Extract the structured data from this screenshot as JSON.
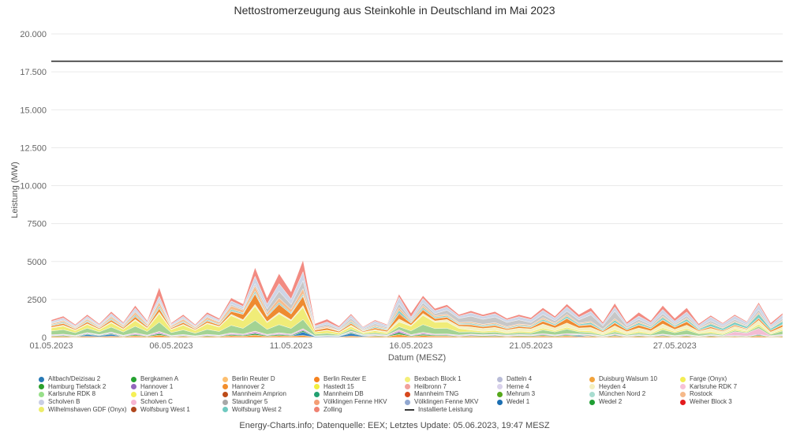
{
  "page": {
    "footer": "Energy-Charts.info; Datenquelle: EEX; Letztes Update: 05.06.2023, 19:47 MESZ"
  },
  "chart_data": {
    "type": "area",
    "stacked": true,
    "title": "Nettostromerzeugung aus Steinkohle in Deutschland im Mai 2023",
    "xlabel": "Datum (MESZ)",
    "ylabel": "Leistung (MW)",
    "ylim": [
      0,
      20000
    ],
    "grid": "horizontal",
    "legend_position": "bottom",
    "yticks": [
      {
        "value": 20000,
        "label": "20.000"
      },
      {
        "value": 17500,
        "label": "17.500"
      },
      {
        "value": 15000,
        "label": "15.000"
      },
      {
        "value": 12500,
        "label": "12.500"
      },
      {
        "value": 10000,
        "label": "10.000"
      },
      {
        "value": 7500,
        "label": "7500"
      },
      {
        "value": 5000,
        "label": "5000"
      },
      {
        "value": 2500,
        "label": "2500"
      },
      {
        "value": 0,
        "label": "0"
      }
    ],
    "xticks": [
      {
        "t_days": 0,
        "label": "01.05.2023"
      },
      {
        "t_days": 5,
        "label": "06.05.2023"
      },
      {
        "t_days": 10,
        "label": "11.05.2023"
      },
      {
        "t_days": 15,
        "label": "16.05.2023"
      },
      {
        "t_days": 20,
        "label": "21.05.2023"
      },
      {
        "t_days": 26,
        "label": "27.05.2023"
      }
    ],
    "installed_capacity": {
      "label": "Installierte Leistung",
      "value_mw": 18200,
      "color": "#2f2f2f"
    },
    "total_mw": {
      "estimated": true,
      "dt_days": 0.5,
      "start_label": "01.05.2023",
      "values": [
        1150,
        1400,
        850,
        1500,
        900,
        1700,
        1000,
        2100,
        1100,
        3300,
        950,
        1500,
        850,
        1650,
        1250,
        2600,
        2200,
        4600,
        2600,
        4200,
        3000,
        5100,
        900,
        1200,
        750,
        1550,
        700,
        1150,
        850,
        2850,
        1600,
        2750,
        1900,
        2150,
        1500,
        1750,
        1500,
        1700,
        1250,
        1500,
        1300,
        1950,
        1400,
        2200,
        1500,
        1950,
        1000,
        2250,
        1000,
        1650,
        1100,
        2100,
        1250,
        1950,
        900,
        1450,
        950,
        1500,
        1050,
        2300,
        950,
        1600
      ]
    },
    "layers": [
      {
        "name": "Hannover 2 (Basisband)",
        "color": "#f59b3a",
        "weights": [
          [
            0,
            90
          ],
          [
            30.5,
            90
          ]
        ]
      },
      {
        "name": "Altbach/Deizisau 2",
        "color": "#2f7fc1",
        "weights": [
          [
            0,
            0
          ],
          [
            1.3,
            0
          ],
          [
            1.45,
            130
          ],
          [
            2.55,
            130
          ],
          [
            2.7,
            0
          ],
          [
            10.2,
            0
          ],
          [
            10.35,
            160
          ],
          [
            12.95,
            160
          ],
          [
            13.1,
            0
          ],
          [
            21.7,
            0
          ],
          [
            21.85,
            115
          ],
          [
            22.35,
            115
          ],
          [
            22.5,
            0
          ],
          [
            30.5,
            0
          ]
        ]
      },
      {
        "name": "Hamburg Tiefstack 2",
        "color": "#35a23a",
        "weights": [
          [
            0,
            55
          ],
          [
            30.5,
            55
          ]
        ]
      },
      {
        "name": "Hannover 1",
        "color": "#9467bd",
        "weights": [
          [
            0,
            42
          ],
          [
            30.5,
            42
          ]
        ]
      },
      {
        "name": "Scholven C / Karlsruhe RDK 7",
        "color": "#f3bcd3",
        "weights": [
          [
            0,
            55
          ],
          [
            28.2,
            45
          ],
          [
            28.45,
            330
          ],
          [
            29.4,
            430
          ],
          [
            29.95,
            90
          ],
          [
            30.5,
            65
          ]
        ]
      },
      {
        "name": "Karlsruhe RDK 8",
        "color": "#a3d393",
        "weights": [
          [
            0,
            330
          ],
          [
            11.5,
            430
          ],
          [
            12.2,
            130
          ],
          [
            14.5,
            95
          ],
          [
            15.05,
            360
          ],
          [
            16.8,
            390
          ],
          [
            17.3,
            165
          ],
          [
            20.1,
            140
          ],
          [
            20.6,
            270
          ],
          [
            21.8,
            270
          ],
          [
            22.3,
            125
          ],
          [
            25,
            135
          ],
          [
            25.6,
            340
          ],
          [
            27,
            340
          ],
          [
            27.5,
            115
          ],
          [
            29.8,
            125
          ],
          [
            30.2,
            270
          ],
          [
            30.5,
            310
          ]
        ]
      },
      {
        "name": "Wilhelmshaven GDF / Lünen 1 / Farge",
        "color": "#f0ec78",
        "weights": [
          [
            0,
            270
          ],
          [
            4,
            310
          ],
          [
            8,
            530
          ],
          [
            11.8,
            570
          ],
          [
            12.3,
            165
          ],
          [
            14.6,
            145
          ],
          [
            15.05,
            430
          ],
          [
            16.9,
            430
          ],
          [
            17.35,
            135
          ],
          [
            21,
            115
          ],
          [
            24,
            135
          ],
          [
            30.5,
            125
          ]
        ]
      },
      {
        "name": "Heyden 4 / Bexbach Block 1",
        "color": "#f4f0c4",
        "weights": [
          [
            0,
            60
          ],
          [
            16,
            95
          ],
          [
            17,
            230
          ],
          [
            23,
            270
          ],
          [
            27,
            270
          ],
          [
            30.5,
            230
          ]
        ]
      },
      {
        "name": "Duisburg Walsum 10 / Berlin Reuter E",
        "color": "#ee8b31",
        "weights": [
          [
            0,
            125
          ],
          [
            7.5,
            145
          ],
          [
            8.05,
            390
          ],
          [
            11.8,
            430
          ],
          [
            12.25,
            95
          ],
          [
            15,
            165
          ],
          [
            20,
            125
          ],
          [
            21.5,
            270
          ],
          [
            23,
            165
          ],
          [
            25.5,
            270
          ],
          [
            26.5,
            270
          ],
          [
            27.05,
            125
          ],
          [
            29.5,
            105
          ],
          [
            30.05,
            230
          ],
          [
            30.5,
            190
          ]
        ]
      },
      {
        "name": "Mannheim TNG",
        "color": "#d7501e",
        "weights": [
          [
            0,
            30
          ],
          [
            30.5,
            30
          ]
        ]
      },
      {
        "name": "Wolfsburg West 2 / München Nord 2",
        "color": "#7ecec3",
        "weights": [
          [
            0,
            72
          ],
          [
            20,
            85
          ],
          [
            23,
            155
          ],
          [
            26,
            155
          ],
          [
            28,
            230
          ],
          [
            30.5,
            270
          ]
        ]
      },
      {
        "name": "Rostock / Völklingen Fenne HKV",
        "color": "#f5bd90",
        "weights": [
          [
            0,
            95
          ],
          [
            9,
            210
          ],
          [
            11.5,
            270
          ],
          [
            12.2,
            75
          ],
          [
            15,
            95
          ],
          [
            24,
            95
          ],
          [
            30.5,
            85
          ]
        ]
      },
      {
        "name": "Staudinger 5",
        "color": "#c7c7c7",
        "weights": [
          [
            0,
            65
          ],
          [
            8.5,
            85
          ],
          [
            9.05,
            330
          ],
          [
            11.8,
            390
          ],
          [
            12.35,
            135
          ],
          [
            14,
            125
          ],
          [
            16,
            135
          ],
          [
            17.05,
            430
          ],
          [
            19,
            430
          ],
          [
            20.05,
            210
          ],
          [
            21.8,
            210
          ],
          [
            22.25,
            490
          ],
          [
            23.5,
            490
          ],
          [
            24.05,
            190
          ],
          [
            26,
            165
          ],
          [
            30.5,
            155
          ]
        ]
      },
      {
        "name": "Scholven B / Völklingen Fenne MKV / Datteln 4",
        "color": "#cdd5e6",
        "weights": [
          [
            0,
            145
          ],
          [
            8,
            175
          ],
          [
            9,
            390
          ],
          [
            11.8,
            430
          ],
          [
            12.3,
            185
          ],
          [
            16,
            210
          ],
          [
            20,
            270
          ],
          [
            24,
            270
          ],
          [
            26,
            310
          ],
          [
            30.5,
            330
          ]
        ]
      },
      {
        "name": "Zolling / Heilbronn 7 / Weiher Block 3",
        "color": "#f28b82",
        "weights": [
          [
            0,
            135
          ],
          [
            4.3,
            135
          ],
          [
            4.55,
            410
          ],
          [
            4.8,
            135
          ],
          [
            8,
            165
          ],
          [
            9,
            490
          ],
          [
            11.8,
            570
          ],
          [
            12.2,
            95
          ],
          [
            14.7,
            85
          ],
          [
            15.1,
            430
          ],
          [
            15.45,
            125
          ],
          [
            16,
            145
          ],
          [
            21.5,
            165
          ],
          [
            22.05,
            270
          ],
          [
            24,
            245
          ],
          [
            24.35,
            430
          ],
          [
            24.65,
            165
          ],
          [
            26,
            330
          ],
          [
            26.85,
            330
          ],
          [
            27.25,
            125
          ],
          [
            29.8,
            125
          ],
          [
            30.1,
            390
          ],
          [
            30.4,
            145
          ],
          [
            30.5,
            145
          ]
        ]
      }
    ],
    "legend_columns": [
      [
        {
          "label": "Altbach/Deizisau 2",
          "color": "#2779b5",
          "swatch": "dot"
        },
        {
          "label": "Hamburg Tiefstack 2",
          "color": "#2ca02c",
          "swatch": "dot"
        },
        {
          "label": "Karlsruhe RDK 8",
          "color": "#98df8a",
          "swatch": "dot"
        },
        {
          "label": "Scholven B",
          "color": "#c9cee4",
          "swatch": "dot"
        },
        {
          "label": "Wilhelmshaven GDF (Onyx)",
          "color": "#eded6a",
          "swatch": "dot"
        }
      ],
      [
        {
          "label": "Bergkamen A",
          "color": "#26a231",
          "swatch": "dot"
        },
        {
          "label": "Hannover 1",
          "color": "#9467bd",
          "swatch": "dot"
        },
        {
          "label": "Lünen 1",
          "color": "#f5f056",
          "swatch": "dot"
        },
        {
          "label": "Scholven C",
          "color": "#f7b6d2",
          "swatch": "dot"
        },
        {
          "label": "Wolfsburg West 1",
          "color": "#b0471c",
          "swatch": "dot"
        }
      ],
      [
        {
          "label": "Berlin Reuter D",
          "color": "#fdbf6f",
          "swatch": "dot"
        },
        {
          "label": "Hannover 2",
          "color": "#f28e2c",
          "swatch": "dot"
        },
        {
          "label": "Mannheim Amprion",
          "color": "#bc4b19",
          "swatch": "dot"
        },
        {
          "label": "Staudinger 5",
          "color": "#a8a8a8",
          "swatch": "dot"
        },
        {
          "label": "Wolfsburg West 2",
          "color": "#6fc9c0",
          "swatch": "dot"
        }
      ],
      [
        {
          "label": "Berlin Reuter E",
          "color": "#f5821f",
          "swatch": "dot"
        },
        {
          "label": "Hastedt 15",
          "color": "#f2ef3f",
          "swatch": "dot"
        },
        {
          "label": "Mannheim DB",
          "color": "#23a071",
          "swatch": "dot"
        },
        {
          "label": "Völklingen Fenne HKV",
          "color": "#f49e75",
          "swatch": "dot"
        },
        {
          "label": "Zolling",
          "color": "#ef8272",
          "swatch": "dot"
        }
      ],
      [
        {
          "label": "Bexbach Block 1",
          "color": "#f4ef79",
          "swatch": "dot"
        },
        {
          "label": "Heilbronn 7",
          "color": "#f1a19b",
          "swatch": "dot"
        },
        {
          "label": "Mannheim TNG",
          "color": "#d7481d",
          "swatch": "dot"
        },
        {
          "label": "Völklingen Fenne MKV",
          "color": "#92a8d1",
          "swatch": "dot"
        },
        {
          "label": "Installierte Leistung",
          "color": "#3a3a3a",
          "swatch": "line"
        }
      ],
      [
        {
          "label": "Datteln 4",
          "color": "#b9bcd8",
          "swatch": "dot"
        },
        {
          "label": "Herne 4",
          "color": "#d9d2ec",
          "swatch": "dot"
        },
        {
          "label": "Mehrum 3",
          "color": "#56a81c",
          "swatch": "dot"
        },
        {
          "label": "Wedel 1",
          "color": "#1c6fb2",
          "swatch": "dot"
        }
      ],
      [
        {
          "label": "Duisburg Walsum 10",
          "color": "#f2a33c",
          "swatch": "dot"
        },
        {
          "label": "Heyden 4",
          "color": "#f4f0c0",
          "swatch": "dot"
        },
        {
          "label": "München Nord 2",
          "color": "#a8dcd0",
          "swatch": "dot"
        },
        {
          "label": "Wedel 2",
          "color": "#1f9e33",
          "swatch": "dot"
        }
      ],
      [
        {
          "label": "Farge (Onyx)",
          "color": "#f3ed55",
          "swatch": "dot"
        },
        {
          "label": "Karlsruhe RDK 7",
          "color": "#f7c2d8",
          "swatch": "dot"
        },
        {
          "label": "Rostock",
          "color": "#f5b98a",
          "swatch": "dot"
        },
        {
          "label": "Weiher Block 3",
          "color": "#e31a1c",
          "swatch": "dot"
        }
      ]
    ]
  }
}
